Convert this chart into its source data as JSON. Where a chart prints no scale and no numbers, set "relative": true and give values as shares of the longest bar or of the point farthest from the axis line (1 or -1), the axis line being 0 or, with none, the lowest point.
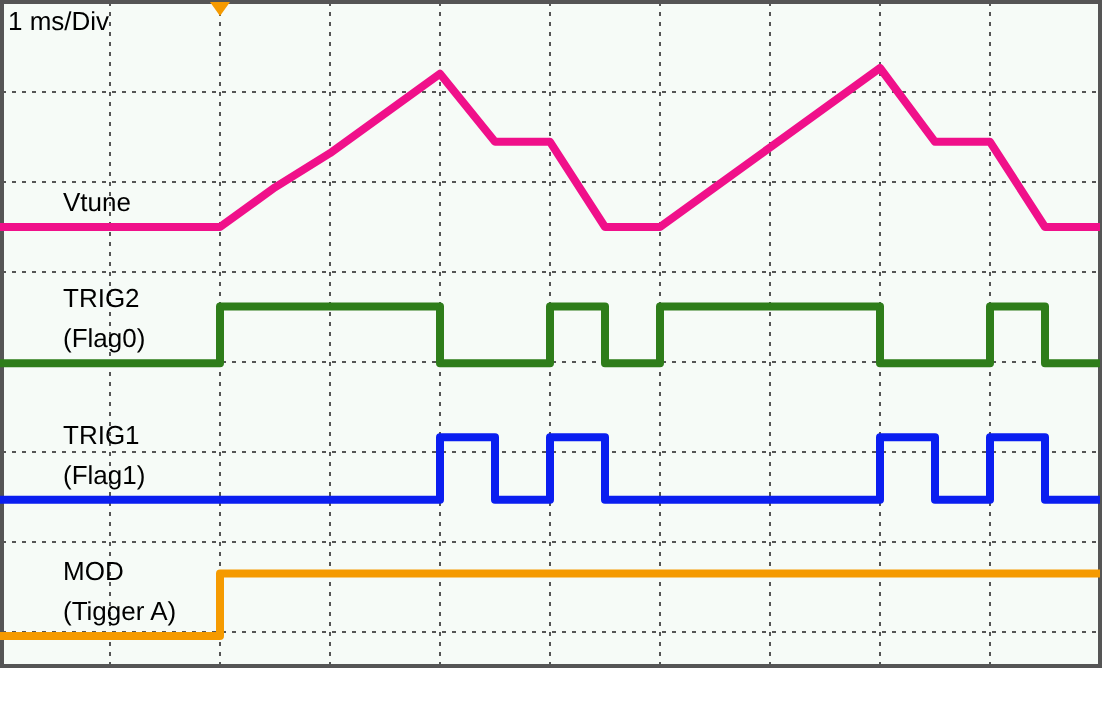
{
  "chart_data": {
    "type": "line",
    "relative": true,
    "grid": true,
    "legend": false,
    "marker": "none",
    "line_style": "solid",
    "annotations": [
      "1 ms/Div"
    ],
    "categories": [
      null,
      null,
      null,
      null,
      null,
      null,
      null,
      null,
      null,
      null,
      null,
      null,
      null,
      null,
      null,
      null,
      null,
      null,
      null,
      null,
      null
    ],
    "series": [
      {
        "name": "Vtune",
        "color": "#f0108a",
        "values": [
          0.72,
          0.72,
          0.72,
          0.72,
          0.72,
          0.79,
          0.85,
          0.92,
          0.99,
          0.87,
          0.87,
          0.72,
          0.72,
          0.79,
          0.86,
          0.93,
          1.0,
          0.87,
          0.87,
          0.72,
          0.72
        ]
      },
      {
        "name": "TRIG2 (Flag0)",
        "type": "step",
        "color": "#2e7d1a",
        "values": [
          0.48,
          0.48,
          0.48,
          0.48,
          0.58,
          0.58,
          0.58,
          0.58,
          0.48,
          0.48,
          0.58,
          0.48,
          0.58,
          0.58,
          0.58,
          0.58,
          0.48,
          0.48,
          0.58,
          0.48,
          0.48
        ]
      },
      {
        "name": "TRIG1 (Flag1)",
        "type": "step",
        "color": "#0a1ef0",
        "values": [
          0.24,
          0.24,
          0.24,
          0.24,
          0.24,
          0.24,
          0.24,
          0.24,
          0.35,
          0.24,
          0.35,
          0.24,
          0.24,
          0.24,
          0.24,
          0.24,
          0.35,
          0.24,
          0.35,
          0.24,
          0.24
        ]
      },
      {
        "name": "MOD (Tigger A)",
        "type": "step",
        "color": "#f59a00",
        "values": [
          0,
          0,
          0,
          0,
          0.11,
          0.11,
          0.11,
          0.11,
          0.11,
          0.11,
          0.11,
          0.11,
          0.11,
          0.11,
          0.11,
          0.11,
          0.11,
          0.11,
          0.11,
          0.11,
          0.11
        ]
      }
    ]
  }
}
